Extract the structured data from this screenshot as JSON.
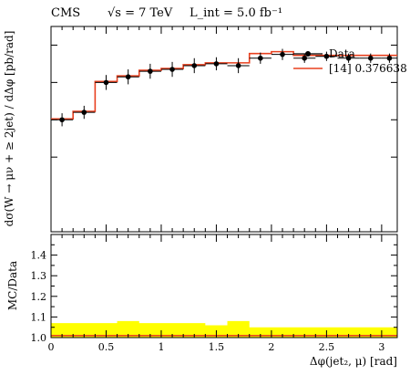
{
  "chart_data": [
    {
      "type": "line",
      "panel": "main",
      "title": "",
      "header": {
        "experiment": "CMS",
        "energy": "√s = 7 TeV",
        "luminosity": "L_int = 5.0 fb⁻¹"
      },
      "ylabel": "dσ(W → μν + ≥ 2jet) / dΔφ [pb/rad]",
      "xlim": [
        0,
        3.14159
      ],
      "y_scale": "linear (tick labels not shown)",
      "ylim": [
        0,
        1.1
      ],
      "legend_position": "top-right",
      "x_edges": [
        0,
        0.2,
        0.4,
        0.6,
        0.8,
        1.0,
        1.2,
        1.4,
        1.6,
        1.8,
        2.0,
        2.2,
        2.4,
        2.6,
        2.8,
        3.0,
        3.14159
      ],
      "series": [
        {
          "name": "Data",
          "kind": "points",
          "values": [
            0.6,
            0.64,
            0.8,
            0.83,
            0.86,
            0.87,
            0.89,
            0.9,
            0.89,
            0.93,
            0.95,
            0.93,
            0.94,
            0.93,
            0.93,
            0.93
          ],
          "errors": [
            0.035,
            0.035,
            0.04,
            0.04,
            0.04,
            0.04,
            0.04,
            0.035,
            0.04,
            0.03,
            0.03,
            0.025,
            0.025,
            0.025,
            0.025,
            0.025
          ],
          "color": "#000000"
        },
        {
          "name": "[14] 0.376638",
          "kind": "histogram",
          "color": "#e8401f",
          "values": [
            0.605,
            0.645,
            0.805,
            0.835,
            0.865,
            0.875,
            0.895,
            0.905,
            0.905,
            0.955,
            0.965,
            0.945,
            0.945,
            0.945,
            0.945,
            0.945
          ]
        }
      ]
    },
    {
      "type": "line",
      "panel": "ratio",
      "ylabel": "MC/Data",
      "xlabel": "Δφ(jet₂, μ) [rad]",
      "xlim": [
        0,
        3.14159
      ],
      "ylim": [
        1.0,
        1.5
      ],
      "x_ticks": [
        "0",
        "0.5",
        "1",
        "1.5",
        "2",
        "2.5",
        "3"
      ],
      "y_ticks": [
        "1.0",
        "1.1",
        "1.2",
        "1.3",
        "1.4"
      ],
      "band_color": "#ffff00",
      "band_high": [
        1.07,
        1.07,
        1.07,
        1.08,
        1.07,
        1.07,
        1.07,
        1.06,
        1.08,
        1.05,
        1.05,
        1.05,
        1.05,
        1.05,
        1.05,
        1.05
      ],
      "band_low": [
        1.0,
        1.0,
        1.0,
        1.0,
        1.0,
        1.0,
        1.0,
        1.0,
        1.0,
        1.0,
        1.0,
        1.0,
        1.0,
        1.0,
        1.0,
        1.0
      ],
      "ratio_values": [
        1.01,
        1.01,
        1.01,
        1.01,
        1.01,
        1.01,
        1.01,
        1.01,
        1.01,
        1.01,
        1.01,
        1.01,
        1.01,
        1.01,
        1.01,
        1.01
      ],
      "line_color": "#e8401f"
    }
  ]
}
